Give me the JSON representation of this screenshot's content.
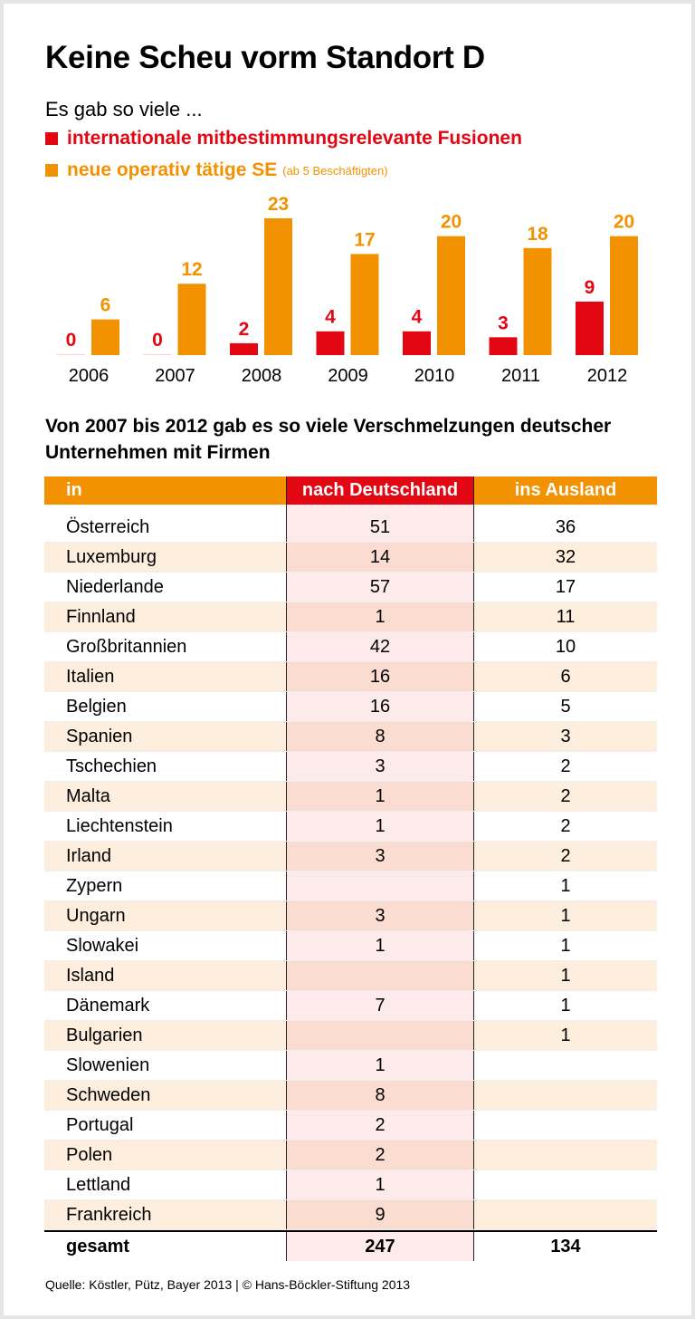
{
  "title": "Keine Scheu vorm Standort D",
  "subtitle": "Es gab so viele ...",
  "colors": {
    "red": "#e30613",
    "orange": "#f39200"
  },
  "chart_data": {
    "type": "bar",
    "categories": [
      "2006",
      "2007",
      "2008",
      "2009",
      "2010",
      "2011",
      "2012"
    ],
    "series": [
      {
        "name": "internationale mitbestimmungsrelevante Fusionen",
        "color": "#e30613",
        "values": [
          0,
          0,
          2,
          4,
          4,
          3,
          9
        ]
      },
      {
        "name": "neue operativ tätige SE",
        "note": "(ab 5 Beschäftigten)",
        "color": "#f39200",
        "values": [
          6,
          12,
          23,
          17,
          20,
          18,
          20
        ]
      }
    ],
    "data_labels": true,
    "grid": false,
    "legend": "top-left"
  },
  "table": {
    "title": "Von 2007 bis 2012 gab es so viele Verschmelzungen deutscher Unternehmen mit Firmen",
    "headers": [
      "in",
      "nach Deutschland",
      "ins Ausland"
    ],
    "rows": [
      [
        "Österreich",
        "51",
        "36"
      ],
      [
        "Luxemburg",
        "14",
        "32"
      ],
      [
        "Niederlande",
        "57",
        "17"
      ],
      [
        "Finnland",
        "1",
        "11"
      ],
      [
        "Großbritannien",
        "42",
        "10"
      ],
      [
        "Italien",
        "16",
        "6"
      ],
      [
        "Belgien",
        "16",
        "5"
      ],
      [
        "Spanien",
        "8",
        "3"
      ],
      [
        "Tschechien",
        "3",
        "2"
      ],
      [
        "Malta",
        "1",
        "2"
      ],
      [
        "Liechtenstein",
        "1",
        "2"
      ],
      [
        "Irland",
        "3",
        "2"
      ],
      [
        "Zypern",
        "",
        "1"
      ],
      [
        "Ungarn",
        "3",
        "1"
      ],
      [
        "Slowakei",
        "1",
        "1"
      ],
      [
        "Island",
        "",
        "1"
      ],
      [
        "Dänemark",
        "7",
        "1"
      ],
      [
        "Bulgarien",
        "",
        "1"
      ],
      [
        "Slowenien",
        "1",
        ""
      ],
      [
        "Schweden",
        "8",
        ""
      ],
      [
        "Portugal",
        "2",
        ""
      ],
      [
        "Polen",
        "2",
        ""
      ],
      [
        "Lettland",
        "1",
        ""
      ],
      [
        "Frankreich",
        "9",
        ""
      ]
    ],
    "total": [
      "gesamt",
      "247",
      "134"
    ]
  },
  "source": "Quelle: Köstler, Pütz, Bayer 2013 | © Hans-Böckler-Stiftung 2013"
}
